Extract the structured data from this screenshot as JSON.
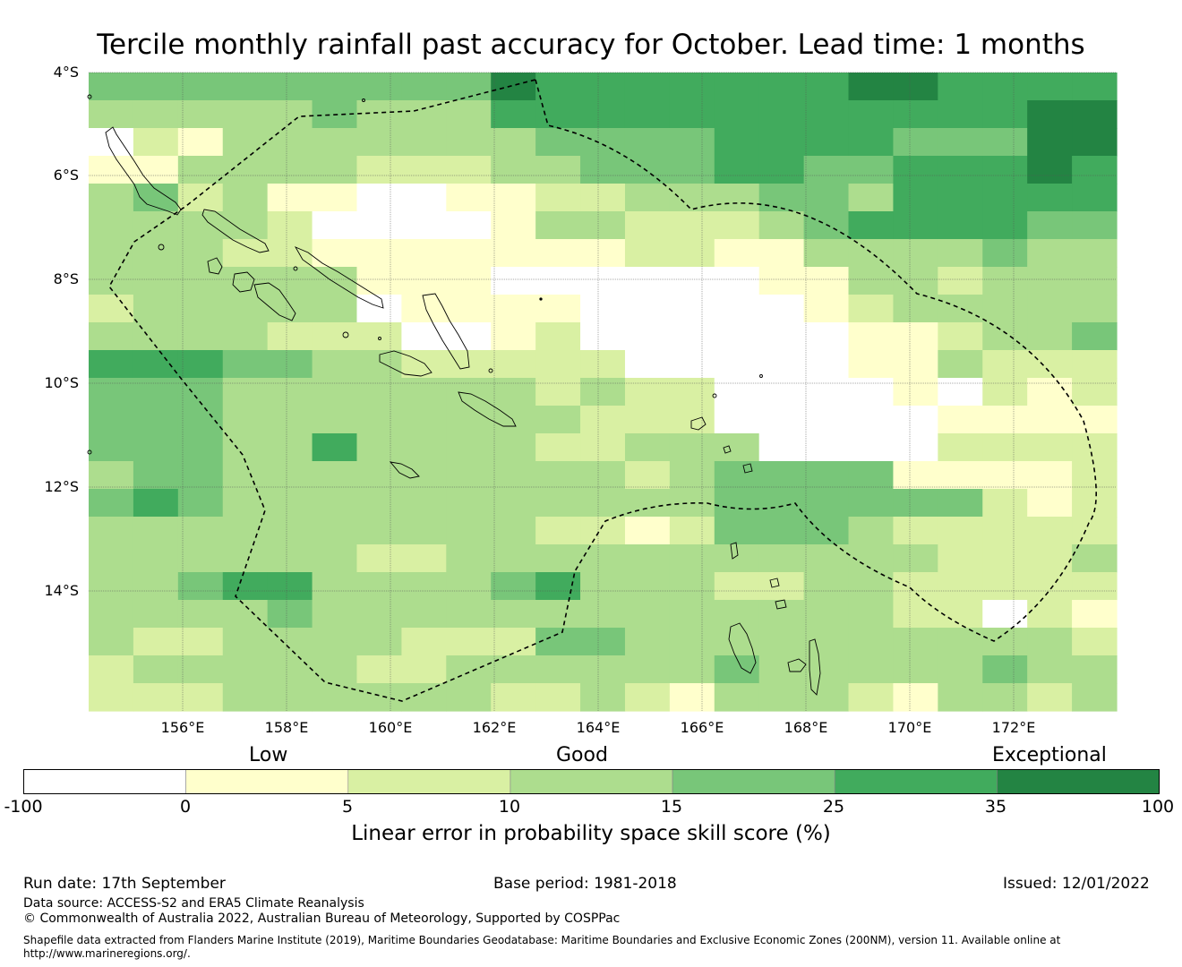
{
  "title": "Tercile monthly rainfall past accuracy for October. Lead time: 1 months",
  "map": {
    "lat_labels": [
      "4°S",
      "6°S",
      "8°S",
      "10°S",
      "12°S",
      "14°S"
    ],
    "lon_labels": [
      "156°E",
      "158°E",
      "160°E",
      "162°E",
      "164°E",
      "166°E",
      "168°E",
      "170°E",
      "172°E"
    ],
    "lon_range": [
      154.2,
      174.0
    ],
    "lat_range": [
      -4.0,
      -16.3
    ],
    "cell_size_deg": 0.833,
    "grid_levels": [
      "44444444465555555665555",
      "33333433355555555555566",
      "02133333334444555544466",
      "11333322233444554455565",
      "34231100112233344355555",
      "33332000013322234555544",
      "33322111111122113333433",
      "33333311100000011332333",
      "23333301111000001233333",
      "33332220012000000112334",
      "55544332222200000113222",
      "44433333332322000010212",
      "44433333333222000001111",
      "44433533332233300002222",
      "34433333333323444411112",
      "45433333333333444444212",
      "33333333332212444322222",
      "33333322333333333332223",
      "33455333345333223322222",
      "33334333333333333322021",
      "32233332224433333333332",
      "23333322333333433333433",
      "22233333322321333213323"
    ],
    "eez_boundary_note": "dashed line"
  },
  "colorbar": {
    "words": [
      "Low",
      "Good",
      "Exceptional"
    ],
    "ticks": [
      "-100",
      "0",
      "5",
      "10",
      "15",
      "25",
      "35",
      "100"
    ],
    "colors": [
      "#ffffff",
      "#ffffcc",
      "#d9f0a3",
      "#addd8e",
      "#78c679",
      "#41ab5d",
      "#238443"
    ],
    "label": "Linear error in probability space skill score (%)"
  },
  "footer": {
    "run_date": "Run date: 17th September",
    "base_period": "Base period: 1981-2018",
    "issued": "Issued: 12/01/2022",
    "data_source": "Data source: ACCESS-S2 and ERA5 Climate Reanalysis",
    "copyright": "© Commonwealth of Australia 2022, Australian Bureau of Meteorology, Supported by COSPPac",
    "shapefile": "Shapefile data extracted from Flanders Marine Institute (2019), Maritime Boundaries Geodatabase: Maritime Boundaries and Exclusive Economic Zones (200NM), version 11. Available online at http://www.marineregions.org/."
  }
}
